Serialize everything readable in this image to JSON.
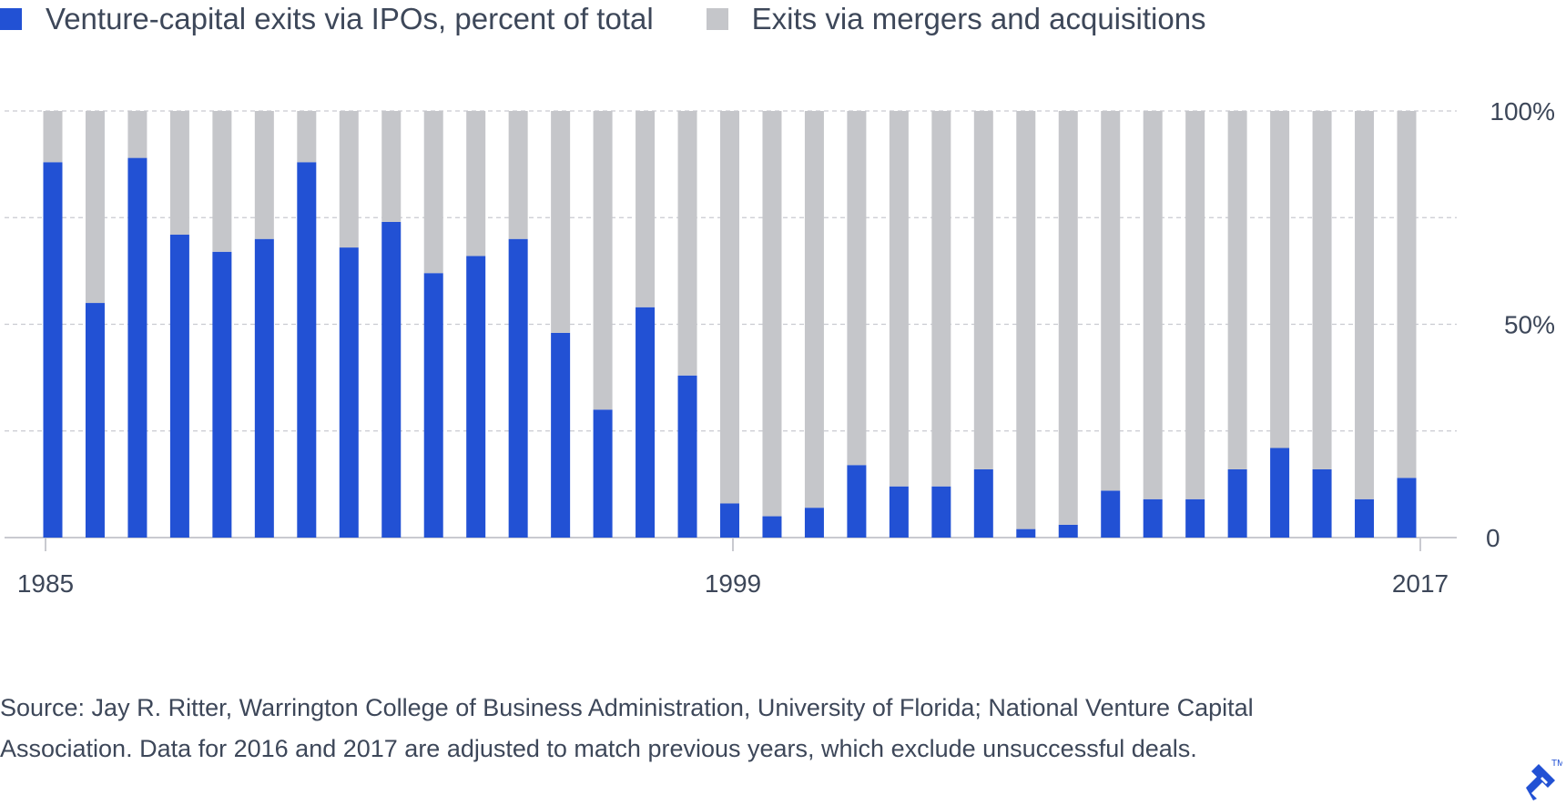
{
  "chart_data": {
    "type": "bar",
    "stacked": true,
    "years": [
      1985,
      1986,
      1987,
      1988,
      1989,
      1990,
      1991,
      1992,
      1993,
      1994,
      1995,
      1996,
      1997,
      1998,
      1999,
      2000,
      2001,
      2002,
      2003,
      2004,
      2005,
      2006,
      2007,
      2008,
      2009,
      2010,
      2011,
      2012,
      2013,
      2014,
      2015,
      2016,
      2017
    ],
    "series": [
      {
        "name": "Venture-capital exits via IPOs, percent of total",
        "color": "#2251d4",
        "values": [
          88,
          55,
          89,
          71,
          67,
          70,
          88,
          68,
          74,
          62,
          66,
          70,
          48,
          30,
          54,
          38,
          8,
          5,
          7,
          17,
          12,
          12,
          16,
          2,
          3,
          11,
          9,
          9,
          16,
          21,
          16,
          9,
          14
        ]
      },
      {
        "name": "Exits via mergers and acquisitions",
        "color": "#c5c6ca",
        "values": [
          12,
          45,
          11,
          29,
          33,
          30,
          12,
          32,
          26,
          38,
          34,
          30,
          52,
          70,
          46,
          62,
          92,
          95,
          93,
          83,
          88,
          88,
          84,
          98,
          97,
          89,
          91,
          91,
          84,
          79,
          84,
          91,
          86
        ]
      }
    ],
    "x_tick_labels": [
      "1985",
      "1999",
      "2017"
    ],
    "y_tick_labels": [
      "100%",
      "50%",
      "0"
    ],
    "ylim": [
      0,
      100
    ],
    "y_gridlines": [
      0,
      25,
      50,
      75,
      100
    ],
    "legend_position": "top-left",
    "title": "",
    "xlabel": "",
    "ylabel": ""
  },
  "source": "Source: Jay R. Ritter, Warrington College of Business Administration, University of Florida; National Venture Capital Association. Data for 2016 and 2017 are adjusted to match previous years, which exclude unsuccessful deals.",
  "logo": {
    "trademark": "TM"
  }
}
